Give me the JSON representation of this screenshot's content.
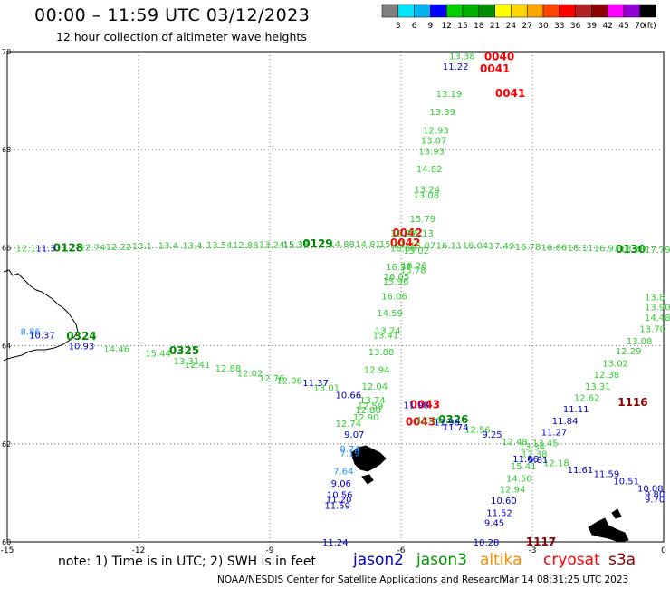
{
  "header": {
    "title": "00:00 – 11:59 UTC 03/12/2023",
    "subtitle": "12 hour collection of altimeter wave heights"
  },
  "color_scale": {
    "unit": "(ft)",
    "ticks": [
      "3",
      "6",
      "9",
      "12",
      "15",
      "18",
      "21",
      "24",
      "27",
      "30",
      "33",
      "36",
      "39",
      "42",
      "45",
      "70"
    ],
    "colors": [
      "#808080",
      "#00e5ff",
      "#00b2ee",
      "#0000ff",
      "#00d000",
      "#00b000",
      "#008c00",
      "#ffff00",
      "#ffd700",
      "#ffa500",
      "#ff4500",
      "#ff0000",
      "#b22222",
      "#8b0000",
      "#ff00ff",
      "#9400d3",
      "#000000"
    ]
  },
  "map": {
    "lon_ticks": [
      "-15",
      "-12",
      "-9",
      "-6",
      "-3",
      "0"
    ],
    "lat_ticks": [
      "60",
      "62",
      "64",
      "66",
      "68",
      "70"
    ]
  },
  "satellites": [
    {
      "name": "jason2",
      "color": "#0000cc"
    },
    {
      "name": "jason3",
      "color": "#009900"
    },
    {
      "name": "altika",
      "color": "#ff8c00"
    },
    {
      "name": "cryosat",
      "color": "#ff0000"
    },
    {
      "name": "s3a",
      "color": "#8b0000"
    }
  ],
  "observations": [
    {
      "t": "0128",
      "lon": -13.95,
      "lat": 66.0,
      "c": "time_j3"
    },
    {
      "t": "0129",
      "lon": -8.25,
      "lat": 66.08,
      "c": "time_j3"
    },
    {
      "t": "0130",
      "lon": -1.1,
      "lat": 65.97,
      "c": "time_j3"
    },
    {
      "t": "0324",
      "lon": -13.65,
      "lat": 64.2,
      "c": "time_j3"
    },
    {
      "t": "0325",
      "lon": -11.3,
      "lat": 63.9,
      "c": "time_j3"
    },
    {
      "t": "0326",
      "lon": -5.15,
      "lat": 62.5,
      "c": "time_j3"
    },
    {
      "t": "0040",
      "lon": -4.1,
      "lat": 69.9,
      "c": "time_cs"
    },
    {
      "t": "0041",
      "lon": -4.2,
      "lat": 69.65,
      "c": "time_cs"
    },
    {
      "t": "0041",
      "lon": -3.85,
      "lat": 69.15,
      "c": "time_cs"
    },
    {
      "t": "0042",
      "lon": -6.2,
      "lat": 66.3,
      "c": "time_cs"
    },
    {
      "t": "0042",
      "lon": -6.25,
      "lat": 66.1,
      "c": "time_cs"
    },
    {
      "t": "0043",
      "lon": -5.8,
      "lat": 62.8,
      "c": "time_cs"
    },
    {
      "t": "0043",
      "lon": -5.9,
      "lat": 62.45,
      "c": "time_cs"
    },
    {
      "t": "1116",
      "lon": -1.05,
      "lat": 62.85,
      "c": "time_s3"
    },
    {
      "t": "1117",
      "lon": -3.15,
      "lat": 60.0,
      "c": "time_s3"
    },
    {
      "t": "12.1",
      "lon": -14.8,
      "lat": 66.0,
      "c": "g"
    },
    {
      "t": "11.3",
      "lon": -14.35,
      "lat": 66.0,
      "c": "b"
    },
    {
      "t": "12.74",
      "lon": -13.35,
      "lat": 66.02,
      "c": "g"
    },
    {
      "t": "12.22",
      "lon": -12.75,
      "lat": 66.03,
      "c": "g"
    },
    {
      "t": "13.1",
      "lon": -12.15,
      "lat": 66.04,
      "c": "g"
    },
    {
      "t": "13.4",
      "lon": -11.55,
      "lat": 66.05,
      "c": "g"
    },
    {
      "t": "13.4",
      "lon": -11.0,
      "lat": 66.05,
      "c": "g"
    },
    {
      "t": "13.54",
      "lon": -10.45,
      "lat": 66.06,
      "c": "g"
    },
    {
      "t": "12.88",
      "lon": -9.85,
      "lat": 66.06,
      "c": "g"
    },
    {
      "t": "13.24",
      "lon": -9.25,
      "lat": 66.07,
      "c": "g"
    },
    {
      "t": "15.35",
      "lon": -8.7,
      "lat": 66.07,
      "c": "j3"
    },
    {
      "t": "14.88",
      "lon": -7.65,
      "lat": 66.08,
      "c": "g"
    },
    {
      "t": "14.81",
      "lon": -7.05,
      "lat": 66.08,
      "c": "g"
    },
    {
      "t": "15.21",
      "lon": -6.5,
      "lat": 66.08,
      "c": "g"
    },
    {
      "t": "15.07",
      "lon": -5.8,
      "lat": 66.05,
      "c": "g"
    },
    {
      "t": "16.11",
      "lon": -5.2,
      "lat": 66.05,
      "c": "g"
    },
    {
      "t": "16.04",
      "lon": -4.6,
      "lat": 66.05,
      "c": "g"
    },
    {
      "t": "17.49",
      "lon": -4.0,
      "lat": 66.04,
      "c": "g"
    },
    {
      "t": "16.78",
      "lon": -3.4,
      "lat": 66.03,
      "c": "g"
    },
    {
      "t": "16.66",
      "lon": -2.8,
      "lat": 66.02,
      "c": "g"
    },
    {
      "t": "16.11",
      "lon": -2.2,
      "lat": 66.01,
      "c": "g"
    },
    {
      "t": "16.93",
      "lon": -1.6,
      "lat": 66.0,
      "c": "g"
    },
    {
      "t": "18.88",
      "lon": -1.0,
      "lat": 65.99,
      "c": "g"
    },
    {
      "t": "17.79",
      "lon": -0.35,
      "lat": 65.97,
      "c": "g"
    },
    {
      "t": "13.38",
      "lon": -4.9,
      "lat": 69.92,
      "c": "g"
    },
    {
      "t": "11.22",
      "lon": -5.05,
      "lat": 69.7,
      "c": "b"
    },
    {
      "t": "13.19",
      "lon": -5.2,
      "lat": 69.15,
      "c": "g"
    },
    {
      "t": "13.39",
      "lon": -5.35,
      "lat": 68.78,
      "c": "g"
    },
    {
      "t": "12.93",
      "lon": -5.5,
      "lat": 68.4,
      "c": "g"
    },
    {
      "t": "13.07",
      "lon": -5.55,
      "lat": 68.2,
      "c": "g"
    },
    {
      "t": "13.93",
      "lon": -5.6,
      "lat": 67.98,
      "c": "g"
    },
    {
      "t": "14.82",
      "lon": -5.65,
      "lat": 67.62,
      "c": "g"
    },
    {
      "t": "13.24",
      "lon": -5.7,
      "lat": 67.2,
      "c": "g"
    },
    {
      "t": "13.08",
      "lon": -5.72,
      "lat": 67.08,
      "c": "g"
    },
    {
      "t": "15.79",
      "lon": -5.8,
      "lat": 66.6,
      "c": "g"
    },
    {
      "t": "15.13",
      "lon": -5.85,
      "lat": 66.3,
      "c": "g"
    },
    {
      "t": "15.02",
      "lon": -5.95,
      "lat": 65.95,
      "c": "g"
    },
    {
      "t": "16.26",
      "lon": -6.0,
      "lat": 65.65,
      "c": "g"
    },
    {
      "t": "15.78",
      "lon": -6.02,
      "lat": 65.55,
      "c": "g"
    },
    {
      "t": "16.21",
      "lon": -6.25,
      "lat": 66.3,
      "c": "g"
    },
    {
      "t": "16.89",
      "lon": -6.25,
      "lat": 66.0,
      "c": "g"
    },
    {
      "t": "16.57",
      "lon": -6.35,
      "lat": 65.62,
      "c": "g"
    },
    {
      "t": "16.05",
      "lon": -6.4,
      "lat": 65.42,
      "c": "g"
    },
    {
      "t": "15.96",
      "lon": -6.42,
      "lat": 65.32,
      "c": "g"
    },
    {
      "t": "16.06",
      "lon": -6.45,
      "lat": 65.02,
      "c": "g"
    },
    {
      "t": "14.59",
      "lon": -6.55,
      "lat": 64.68,
      "c": "g"
    },
    {
      "t": "13.74",
      "lon": -6.6,
      "lat": 64.32,
      "c": "g"
    },
    {
      "t": "13.41",
      "lon": -6.65,
      "lat": 64.22,
      "c": "g"
    },
    {
      "t": "13.88",
      "lon": -6.75,
      "lat": 63.88,
      "c": "g"
    },
    {
      "t": "12.94",
      "lon": -6.85,
      "lat": 63.52,
      "c": "g"
    },
    {
      "t": "12.04",
      "lon": -6.9,
      "lat": 63.18,
      "c": "g"
    },
    {
      "t": "13.74",
      "lon": -6.95,
      "lat": 62.9,
      "c": "g"
    },
    {
      "t": "12.59",
      "lon": -7.0,
      "lat": 62.78,
      "c": "g"
    },
    {
      "t": "12.80",
      "lon": -7.05,
      "lat": 62.7,
      "c": "g"
    },
    {
      "t": "12.90",
      "lon": -7.1,
      "lat": 62.55,
      "c": "g"
    },
    {
      "t": "8.86",
      "lon": -14.7,
      "lat": 64.3,
      "c": "c"
    },
    {
      "t": "10.37",
      "lon": -14.5,
      "lat": 64.22,
      "c": "b"
    },
    {
      "t": "10.93",
      "lon": -13.6,
      "lat": 64.0,
      "c": "b"
    },
    {
      "t": "14.46",
      "lon": -12.8,
      "lat": 63.95,
      "c": "g"
    },
    {
      "t": "15.44",
      "lon": -11.85,
      "lat": 63.85,
      "c": "g"
    },
    {
      "t": "13.31",
      "lon": -11.2,
      "lat": 63.7,
      "c": "g"
    },
    {
      "t": "12.41",
      "lon": -10.95,
      "lat": 63.62,
      "c": "g"
    },
    {
      "t": "12.88",
      "lon": -10.25,
      "lat": 63.55,
      "c": "g"
    },
    {
      "t": "12.02",
      "lon": -9.75,
      "lat": 63.45,
      "c": "g"
    },
    {
      "t": "12.76",
      "lon": -9.25,
      "lat": 63.35,
      "c": "g"
    },
    {
      "t": "12.06",
      "lon": -8.85,
      "lat": 63.3,
      "c": "g"
    },
    {
      "t": "11.37",
      "lon": -8.25,
      "lat": 63.25,
      "c": "b"
    },
    {
      "t": "13.01",
      "lon": -8.0,
      "lat": 63.15,
      "c": "g"
    },
    {
      "t": "10.66",
      "lon": -7.5,
      "lat": 63.0,
      "c": "b"
    },
    {
      "t": "11.98",
      "lon": -5.95,
      "lat": 62.8,
      "c": "b"
    },
    {
      "t": "12.09",
      "lon": -5.65,
      "lat": 62.5,
      "c": "g"
    },
    {
      "t": "11.98",
      "lon": -5.25,
      "lat": 62.45,
      "c": "b"
    },
    {
      "t": "11.74",
      "lon": -5.05,
      "lat": 62.35,
      "c": "b"
    },
    {
      "t": "12.56",
      "lon": -4.55,
      "lat": 62.3,
      "c": "g"
    },
    {
      "t": "9.25",
      "lon": -4.15,
      "lat": 62.2,
      "c": "b"
    },
    {
      "t": "12.48",
      "lon": -3.7,
      "lat": 62.05,
      "c": "g"
    },
    {
      "t": "13.34",
      "lon": -3.3,
      "lat": 61.95,
      "c": "g"
    },
    {
      "t": "12.74",
      "lon": -7.5,
      "lat": 62.42,
      "c": "g"
    },
    {
      "t": "9.07",
      "lon": -7.3,
      "lat": 62.2,
      "c": "b"
    },
    {
      "t": "8.74",
      "lon": -7.4,
      "lat": 61.9,
      "c": "c"
    },
    {
      "t": "7.19",
      "lon": -7.4,
      "lat": 61.82,
      "c": "c"
    },
    {
      "t": "7.64",
      "lon": -7.55,
      "lat": 61.45,
      "c": "c"
    },
    {
      "t": "9.06",
      "lon": -7.6,
      "lat": 61.2,
      "c": "b"
    },
    {
      "t": "10.56",
      "lon": -7.7,
      "lat": 60.97,
      "c": "b"
    },
    {
      "t": "11.20",
      "lon": -7.72,
      "lat": 60.88,
      "c": "b"
    },
    {
      "t": "11.59",
      "lon": -7.75,
      "lat": 60.75,
      "c": "b"
    },
    {
      "t": "11.24",
      "lon": -7.8,
      "lat": 60.0,
      "c": "b"
    },
    {
      "t": "13.8",
      "lon": 0.0,
      "lat": 65.0,
      "c": "g"
    },
    {
      "t": "13.90",
      "lon": -0.1,
      "lat": 64.8,
      "c": "g"
    },
    {
      "t": "14.48",
      "lon": -0.35,
      "lat": 64.58,
      "c": "g"
    },
    {
      "t": "13.70",
      "lon": -0.55,
      "lat": 64.35,
      "c": "g"
    },
    {
      "t": "13.08",
      "lon": -0.85,
      "lat": 64.1,
      "c": "g"
    },
    {
      "t": "12.29",
      "lon": -1.1,
      "lat": 63.9,
      "c": "g"
    },
    {
      "t": "13.02",
      "lon": -1.4,
      "lat": 63.65,
      "c": "g"
    },
    {
      "t": "12.38",
      "lon": -1.6,
      "lat": 63.42,
      "c": "g"
    },
    {
      "t": "13.31",
      "lon": -1.8,
      "lat": 63.18,
      "c": "g"
    },
    {
      "t": "12.62",
      "lon": -2.05,
      "lat": 62.95,
      "c": "g"
    },
    {
      "t": "11.11",
      "lon": -2.3,
      "lat": 62.72,
      "c": "b"
    },
    {
      "t": "11.84",
      "lon": -2.55,
      "lat": 62.48,
      "c": "b"
    },
    {
      "t": "11.27",
      "lon": -2.8,
      "lat": 62.25,
      "c": "b"
    },
    {
      "t": "13.45",
      "lon": -3.0,
      "lat": 62.02,
      "c": "g"
    },
    {
      "t": "12.38",
      "lon": -3.25,
      "lat": 61.8,
      "c": "g"
    },
    {
      "t": "11.66",
      "lon": -3.45,
      "lat": 61.7,
      "c": "b"
    },
    {
      "t": "9.81",
      "lon": -3.1,
      "lat": 61.68,
      "c": "b"
    },
    {
      "t": "12.18",
      "lon": -2.75,
      "lat": 61.62,
      "c": "g"
    },
    {
      "t": "15.41",
      "lon": -3.5,
      "lat": 61.55,
      "c": "g"
    },
    {
      "t": "14.50",
      "lon": -3.6,
      "lat": 61.3,
      "c": "g"
    },
    {
      "t": "12.94",
      "lon": -3.75,
      "lat": 61.08,
      "c": "g"
    },
    {
      "t": "10.60",
      "lon": -3.95,
      "lat": 60.85,
      "c": "b"
    },
    {
      "t": "11.52",
      "lon": -4.05,
      "lat": 60.6,
      "c": "b"
    },
    {
      "t": "9.45",
      "lon": -4.1,
      "lat": 60.4,
      "c": "b"
    },
    {
      "t": "10.28",
      "lon": -4.35,
      "lat": 60.0,
      "c": "b"
    },
    {
      "t": "11.61",
      "lon": -2.2,
      "lat": 61.48,
      "c": "b"
    },
    {
      "t": "11.59",
      "lon": -1.6,
      "lat": 61.4,
      "c": "b"
    },
    {
      "t": "10.51",
      "lon": -1.15,
      "lat": 61.25,
      "c": "b"
    },
    {
      "t": "10.08",
      "lon": -0.6,
      "lat": 61.1,
      "c": "b"
    },
    {
      "t": "9.80",
      "lon": -0.2,
      "lat": 60.98,
      "c": "b"
    },
    {
      "t": "9.70",
      "lon": 0.0,
      "lat": 60.88,
      "c": "b"
    }
  ],
  "note": "note: 1) Time is in UTC; 2) SWH is in feet",
  "footer": "NOAA/NESDIS Center for Satellite Applications and Research",
  "timestamp": "Mar 14 08:31:25 UTC 2023"
}
